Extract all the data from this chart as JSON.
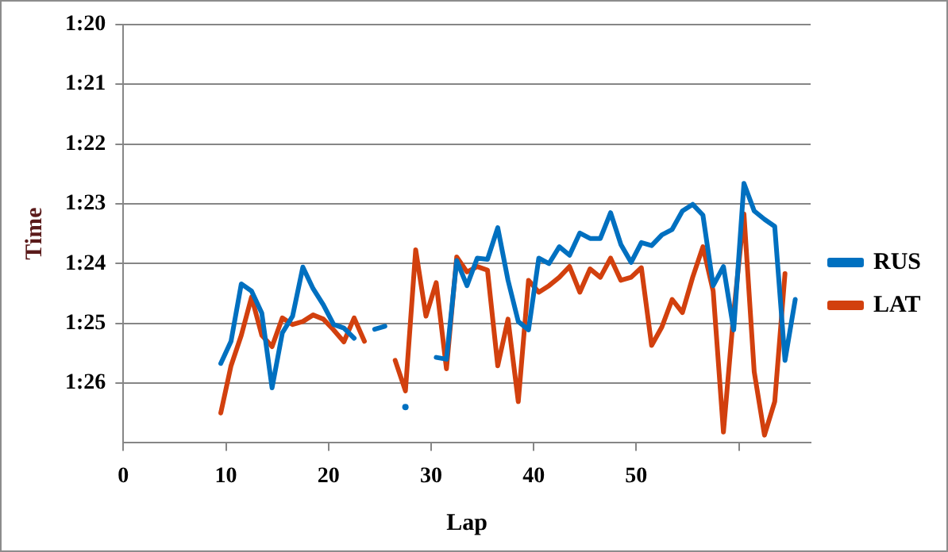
{
  "chart_data": {
    "type": "line",
    "xlabel": "Lap",
    "ylabel": "Time",
    "xlim": [
      0,
      67
    ],
    "xticks": [
      0,
      10,
      20,
      30,
      40,
      50,
      {
        "value": 60,
        "label": null
      }
    ],
    "ylim": [
      87,
      80
    ],
    "yticks": [
      {
        "value": 80,
        "label": "1:20"
      },
      {
        "value": 81,
        "label": "1:21"
      },
      {
        "value": 82,
        "label": "1:22"
      },
      {
        "value": 83,
        "label": "1:23"
      },
      {
        "value": 84,
        "label": "1:24"
      },
      {
        "value": 85,
        "label": "1:25"
      },
      {
        "value": 86,
        "label": "1:26"
      }
    ],
    "grid": "y",
    "legend": "right",
    "marker": "none",
    "line_style": "solid",
    "series": [
      {
        "name": "RUS",
        "color": "#0070c0",
        "x": [
          9.5,
          10.5,
          11.5,
          12.5,
          13.5,
          14.5,
          15.5,
          16.5,
          17.5,
          18.5,
          19.5,
          20.5,
          21.5,
          22.5,
          23.5,
          24.5,
          25.5,
          26.5,
          27.5,
          28.3,
          29.5,
          30.4,
          30.5,
          31.5,
          32.5,
          33.5,
          34.5,
          35.5,
          36.5,
          37.5,
          38.5,
          39.5,
          40.5,
          41.5,
          42.5,
          43.5,
          44.5,
          45.5,
          46.5,
          47.5,
          48.5,
          49.5,
          50.5,
          51.5,
          52.5,
          53.5,
          54.5,
          55.5,
          56.5,
          57.5,
          58.5,
          59.5,
          60.5,
          61.5,
          62.5,
          63.5,
          64.5,
          65.5
        ],
        "values": [
          85.67,
          85.3,
          84.34,
          84.46,
          84.83,
          86.08,
          85.16,
          84.88,
          84.06,
          84.42,
          84.69,
          85.02,
          85.08,
          85.25,
          null,
          85.1,
          85.05,
          null,
          86.4,
          null,
          null,
          null,
          85.57,
          85.6,
          83.95,
          84.37,
          83.91,
          83.93,
          83.4,
          84.28,
          84.97,
          85.11,
          83.91,
          84.0,
          83.72,
          83.86,
          83.49,
          83.58,
          83.58,
          83.15,
          83.68,
          83.98,
          83.65,
          83.7,
          83.52,
          83.43,
          83.12,
          83.01,
          83.19,
          84.37,
          84.05,
          85.11,
          82.66,
          83.12,
          83.26,
          83.38,
          85.62,
          84.6
        ]
      },
      {
        "name": "LAT",
        "color": "#d2400e",
        "x": [
          9.5,
          10.5,
          11.5,
          12.5,
          13.5,
          14.5,
          15.5,
          16.5,
          17.5,
          18.5,
          19.5,
          20.5,
          21.5,
          22.5,
          23.5,
          23.9,
          25,
          26.3,
          26.5,
          27.5,
          28.5,
          29.5,
          30.5,
          31.5,
          32.5,
          33.5,
          34.5,
          35.5,
          36.5,
          37.5,
          38.5,
          39.5,
          40.5,
          41.5,
          42.5,
          43.5,
          44.5,
          45.5,
          46.5,
          47.5,
          48.5,
          49.5,
          50.5,
          51.5,
          52.5,
          53.5,
          54.5,
          55.5,
          56.5,
          57.5,
          58.5,
          59.5,
          60.5,
          61.5,
          62.5,
          63.5,
          64.5
        ],
        "values": [
          86.5,
          85.71,
          85.2,
          84.56,
          85.2,
          85.39,
          84.91,
          85.02,
          84.97,
          84.86,
          84.93,
          85.11,
          85.31,
          84.91,
          85.3,
          null,
          null,
          null,
          85.62,
          86.13,
          83.77,
          84.88,
          84.32,
          85.76,
          83.89,
          84.14,
          84.05,
          84.11,
          85.71,
          84.93,
          86.31,
          84.28,
          84.48,
          84.37,
          84.23,
          84.05,
          84.48,
          84.09,
          84.23,
          83.91,
          84.28,
          84.23,
          84.07,
          85.37,
          85.06,
          84.6,
          84.82,
          84.23,
          83.72,
          84.46,
          86.82,
          84.83,
          83.17,
          85.81,
          86.87,
          86.31,
          84.17
        ]
      }
    ]
  }
}
